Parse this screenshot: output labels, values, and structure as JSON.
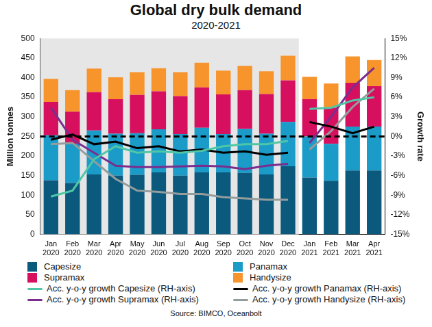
{
  "chart_data": {
    "type": "bar",
    "title": "Global dry bulk demand",
    "subtitle": "2020-2021",
    "source": "Source: BIMCO, Oceanbolt",
    "ylabel": "Million tonnes",
    "y2label": "Growth rate",
    "stacked": true,
    "grid": false,
    "legend": "bottom",
    "categories": [
      "Jan 2020",
      "Feb 2020",
      "Mar 2020",
      "Apr 2020",
      "May 2020",
      "Jun 2020",
      "Jul 2020",
      "Aug 2020",
      "Sep 2020",
      "Oct 2020",
      "Nov 2020",
      "Dec 2020",
      "Jan 2021",
      "Feb 2021",
      "Mar 2021",
      "Apr 2021"
    ],
    "ylim": [
      0,
      500
    ],
    "yticks": [
      0,
      50,
      100,
      150,
      200,
      250,
      300,
      350,
      400,
      450,
      500
    ],
    "y2lim": [
      -15,
      15
    ],
    "y2ticks": [
      {
        "value": -15,
        "label": "-15%"
      },
      {
        "value": -12,
        "label": "-12%"
      },
      {
        "value": -9,
        "label": "-9%"
      },
      {
        "value": -6,
        "label": "-6%"
      },
      {
        "value": -3,
        "label": "-3%"
      },
      {
        "value": 0,
        "label": "0%"
      },
      {
        "value": 3,
        "label": "3%"
      },
      {
        "value": 6,
        "label": "6%"
      },
      {
        "value": 9,
        "label": "9%"
      },
      {
        "value": 12,
        "label": "12%"
      },
      {
        "value": 15,
        "label": "15%"
      }
    ],
    "series": [
      {
        "name": "Capesize",
        "type": "bar",
        "color": "#0b5a7e",
        "values": [
          138,
          131,
          153,
          150,
          152,
          158,
          150,
          158,
          158,
          157,
          153,
          174,
          145,
          137,
          163,
          163
        ]
      },
      {
        "name": "Panamax",
        "type": "bar",
        "color": "#1a9bc8",
        "values": [
          115,
          100,
          112,
          107,
          106,
          110,
          106,
          114,
          98,
          112,
          104,
          113,
          105,
          94,
          112,
          112
        ]
      },
      {
        "name": "Supramax",
        "type": "bar",
        "color": "#d6105f",
        "values": [
          85,
          82,
          98,
          88,
          98,
          97,
          97,
          103,
          101,
          99,
          101,
          106,
          95,
          92,
          112,
          103
        ]
      },
      {
        "name": "Handysize",
        "type": "bar",
        "color": "#f7942b",
        "values": [
          59,
          55,
          60,
          56,
          58,
          59,
          61,
          63,
          61,
          62,
          58,
          63,
          57,
          62,
          67,
          67
        ]
      },
      {
        "name": "Acc. y-o-y growth Capesize (RH-axis)",
        "type": "line",
        "axis": "y2",
        "color": "#4fc7a6",
        "values": [
          -9.2,
          -8.3,
          -3.5,
          -1.5,
          -2.5,
          -2.3,
          -2.5,
          -2.2,
          -1.5,
          -1.2,
          -1.2,
          -0.7,
          4.2,
          4.4,
          5.5,
          6.0
        ]
      },
      {
        "name": "Acc. y-o-y growth Panamax (RH-axis)",
        "type": "line",
        "axis": "y2",
        "color": "#000000",
        "values": [
          -0.5,
          0.3,
          -1.2,
          -0.8,
          -1.8,
          -1.5,
          -2.3,
          -2.0,
          -2.5,
          -2.3,
          -2.8,
          -2.5,
          2.2,
          1.5,
          0.5,
          1.5
        ]
      },
      {
        "name": "Acc. y-o-y growth Supramax (RH-axis)",
        "type": "line",
        "axis": "y2",
        "color": "#7b2d8e",
        "values": [
          4.4,
          -0.5,
          -2.5,
          -4.5,
          -4.7,
          -4.7,
          -4.6,
          -4.5,
          -4.6,
          -5.0,
          -4.5,
          -4.2,
          -1.0,
          3.0,
          7.5,
          10.5
        ]
      },
      {
        "name": "Acc. y-o-y growth Handysize (RH-axis)",
        "type": "line",
        "axis": "y2",
        "color": "#959c9c",
        "values": [
          -1.2,
          -1.0,
          -3.8,
          -6.5,
          -8.3,
          -8.5,
          -8.8,
          -8.8,
          -9.3,
          -9.5,
          -9.7,
          -9.7,
          -2.0,
          0.8,
          4.5,
          7.3
        ]
      }
    ]
  }
}
